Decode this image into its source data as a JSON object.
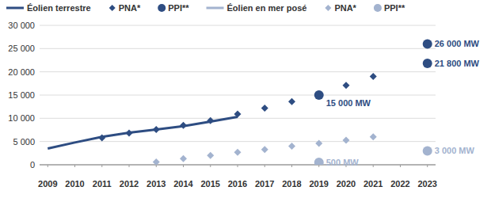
{
  "chart_data": {
    "type": "line",
    "x": [
      2009,
      2010,
      2011,
      2012,
      2013,
      2014,
      2015,
      2016,
      2017,
      2018,
      2019,
      2020,
      2021,
      2022,
      2023
    ],
    "xlim": [
      2008.7,
      2023.3
    ],
    "xticks": [
      2009,
      2010,
      2011,
      2012,
      2013,
      2014,
      2015,
      2016,
      2017,
      2018,
      2019,
      2020,
      2021,
      2022,
      2023
    ],
    "ylim": [
      0,
      30000
    ],
    "yticks": [
      0,
      {
        "value": 5000,
        "label": "5 000"
      },
      {
        "value": 10000,
        "label": "10 000"
      },
      {
        "value": 15000,
        "label": "15 000"
      },
      {
        "value": 20000,
        "label": "20 000"
      },
      {
        "value": 25000,
        "label": "25 000"
      },
      {
        "value": 30000,
        "label": "30 000"
      }
    ],
    "grid": true,
    "legend": "top",
    "series": [
      {
        "name": "Éolien terrestre",
        "type": "line",
        "color": "#2e4d82",
        "line_style": "solid",
        "x": [
          2009,
          2010,
          2011,
          2012,
          2013,
          2014,
          2015,
          2016
        ],
        "values": [
          3500,
          4800,
          6000,
          6900,
          7600,
          8300,
          9300,
          10300
        ]
      },
      {
        "name": "PNA*",
        "type": "scatter",
        "marker": "diamond",
        "color": "#2e4d82",
        "x": [
          2011,
          2012,
          2013,
          2014,
          2015,
          2016,
          2017,
          2018,
          2019,
          2020,
          2021
        ],
        "values": [
          5800,
          6800,
          7600,
          8500,
          9500,
          10900,
          12200,
          13600,
          15000,
          17100,
          19000
        ]
      },
      {
        "name": "PPI**",
        "type": "scatter",
        "marker": "circle",
        "color": "#2e4d82",
        "data_labels": true,
        "x": [
          2019,
          2023,
          2023
        ],
        "values": [
          15000,
          21800,
          26000
        ],
        "value_labels": [
          "15 000 MW",
          "21 800 MW",
          "26 000 MW"
        ]
      },
      {
        "name": "Éolien en mer posé",
        "type": "line",
        "color": "#a3b3cf",
        "line_style": "solid",
        "x": [],
        "values": []
      },
      {
        "name": "PNA*",
        "type": "scatter",
        "marker": "diamond",
        "color": "#a3b3cf",
        "x": [
          2013,
          2014,
          2015,
          2016,
          2017,
          2018,
          2019,
          2020,
          2021
        ],
        "values": [
          600,
          1300,
          2000,
          2700,
          3300,
          4000,
          4600,
          5300,
          6000
        ]
      },
      {
        "name": "PPI**",
        "type": "scatter",
        "marker": "circle",
        "color": "#a3b3cf",
        "data_labels": true,
        "x": [
          2019,
          2023
        ],
        "values": [
          500,
          3000
        ],
        "value_labels": [
          "500 MW",
          "3 000 MW"
        ]
      }
    ]
  }
}
